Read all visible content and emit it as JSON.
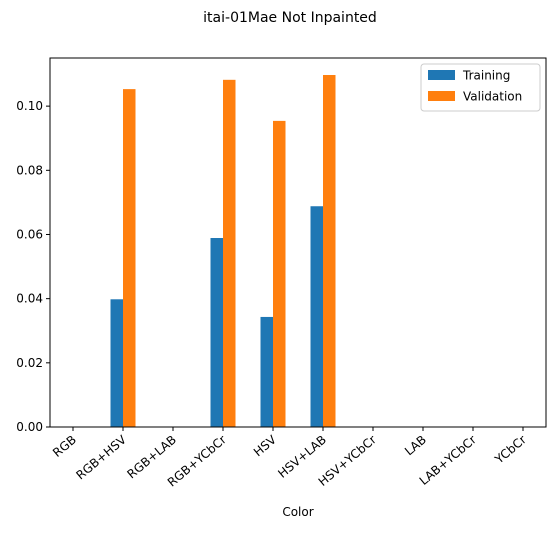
{
  "chart_data": {
    "type": "bar",
    "title": "itai-01Mae Not Inpainted",
    "xlabel": "Color",
    "ylabel": "",
    "categories": [
      "RGB",
      "RGB+HSV",
      "RGB+LAB",
      "RGB+YCbCr",
      "HSV",
      "HSV+LAB",
      "HSV+YCbCr",
      "LAB",
      "LAB+YCbCr",
      "YCbCr"
    ],
    "series": [
      {
        "name": "Training",
        "color": "#1f77b4",
        "values": [
          0,
          0.0398,
          0,
          0.0589,
          0.0343,
          0.0688,
          0,
          0,
          0,
          0
        ]
      },
      {
        "name": "Validation",
        "color": "#ff7f0e",
        "values": [
          0,
          0.1053,
          0,
          0.1082,
          0.0954,
          0.1097,
          0,
          0,
          0,
          0
        ]
      }
    ],
    "ylim": [
      0,
      0.115
    ],
    "yticks": [
      0.0,
      0.02,
      0.04,
      0.06,
      0.08,
      0.1
    ],
    "ytick_labels": [
      "0.00",
      "0.02",
      "0.04",
      "0.06",
      "0.08",
      "0.10"
    ],
    "grid": false,
    "legend_position": "top-right"
  }
}
